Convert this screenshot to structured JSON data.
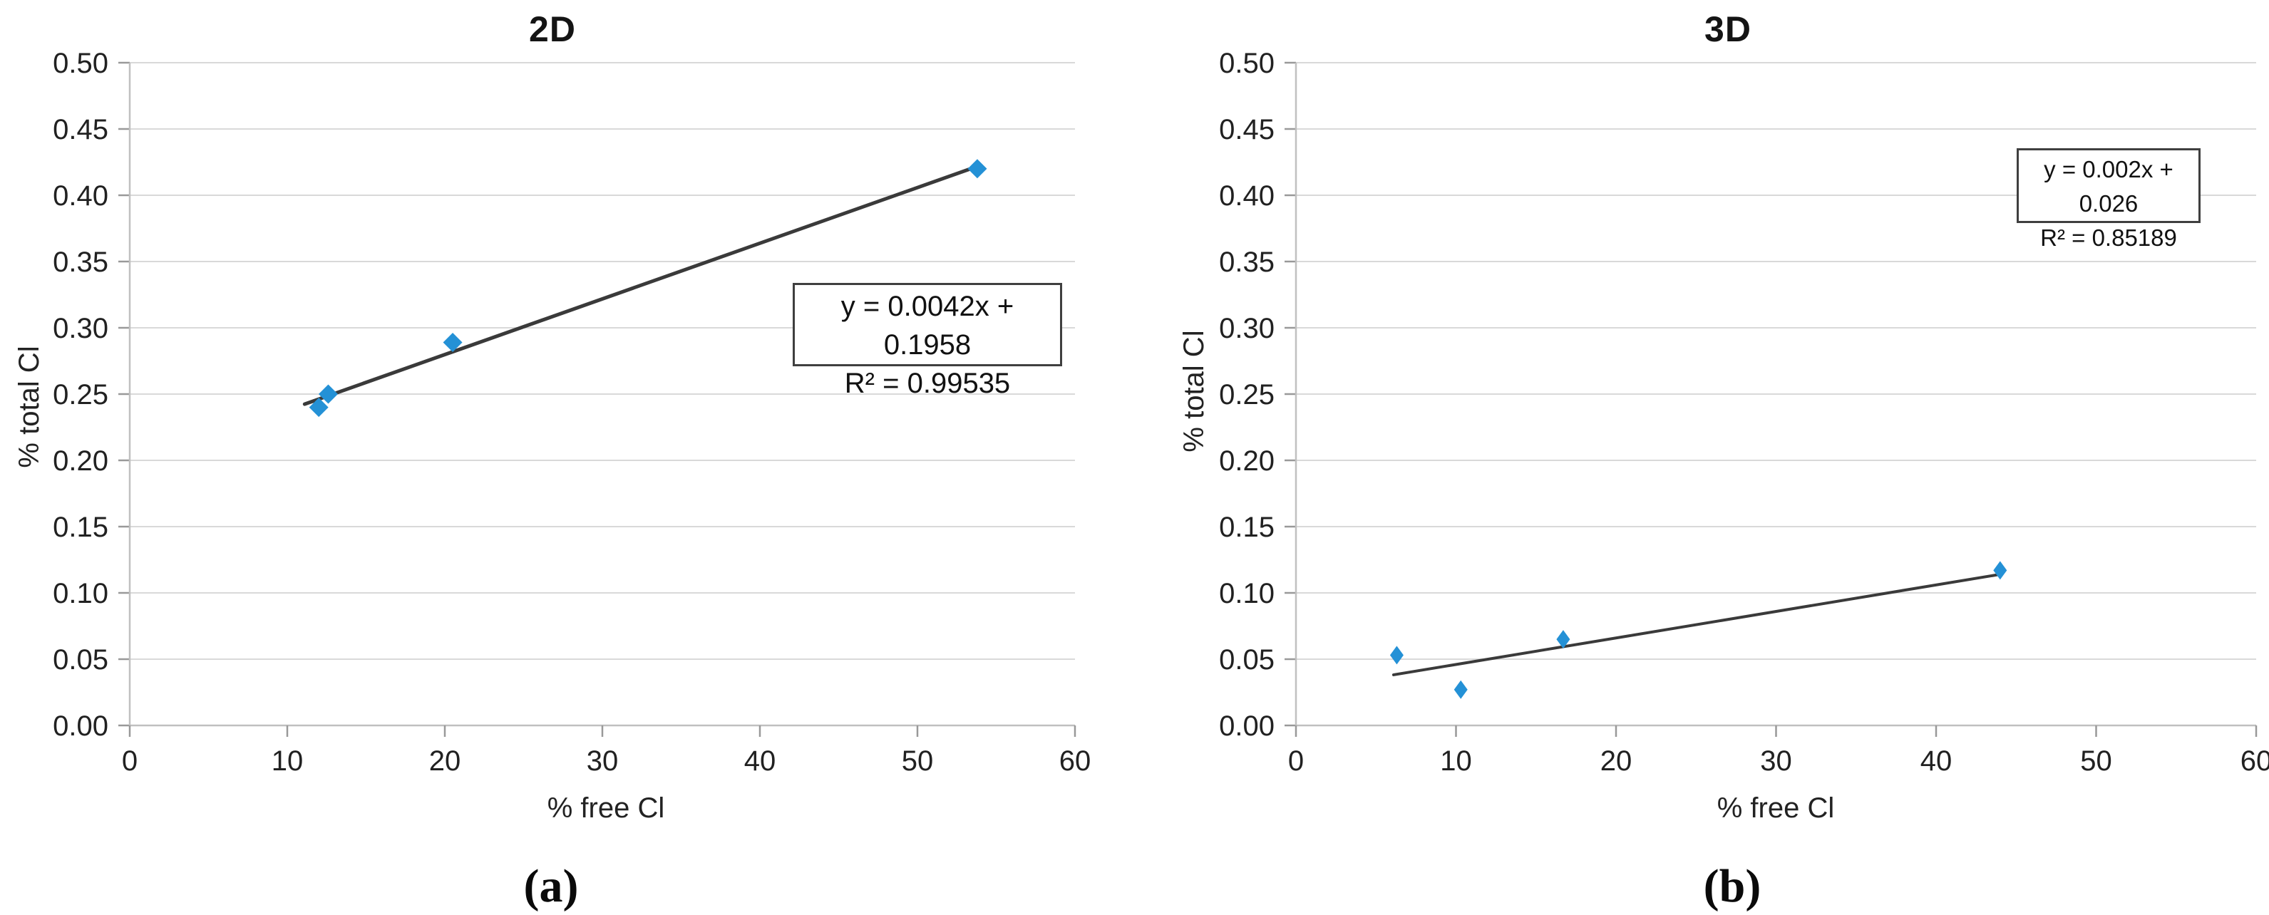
{
  "figure": {
    "captions": {
      "a": "(a)",
      "b": "(b)"
    }
  },
  "colors": {
    "marker": "#2491d6",
    "trendline": "#3a3a3a",
    "gridline": "#d9d9d9",
    "axis": "#c0c0c0",
    "tick": "#999999",
    "tick_label": "#212121",
    "background": "#ffffff"
  },
  "chart_data": [
    {
      "type": "scatter",
      "title": "2D",
      "xlabel": "% free Cl",
      "ylabel": "% total Cl",
      "xlim": [
        0,
        60
      ],
      "xstep": 10,
      "ylim": [
        0,
        0.5
      ],
      "ystep": 0.05,
      "grid": true,
      "legend": "none",
      "points": [
        {
          "x": 12.0,
          "y": 0.24
        },
        {
          "x": 12.6,
          "y": 0.25
        },
        {
          "x": 20.5,
          "y": 0.289
        },
        {
          "x": 53.8,
          "y": 0.42
        }
      ],
      "trendline": {
        "slope": 0.0042,
        "intercept": 0.1958,
        "x_start": 11.1,
        "x_end": 53.8,
        "equation": "y = 0.0042x + 0.1958",
        "r_squared": "R² = 0.99535"
      }
    },
    {
      "type": "scatter",
      "title": "3D",
      "xlabel": "% free Cl",
      "ylabel": "% total Cl",
      "xlim": [
        0,
        60
      ],
      "xstep": 10,
      "ylim": [
        0,
        0.5
      ],
      "ystep": 0.05,
      "grid": true,
      "legend": "none",
      "points": [
        {
          "x": 6.3,
          "y": 0.053
        },
        {
          "x": 10.3,
          "y": 0.027
        },
        {
          "x": 16.7,
          "y": 0.065
        },
        {
          "x": 44.0,
          "y": 0.117
        }
      ],
      "trendline": {
        "slope": 0.002,
        "intercept": 0.026,
        "x_start": 6.1,
        "x_end": 44.0,
        "equation": "y = 0.002x + 0.026",
        "r_squared": "R² = 0.85189"
      }
    }
  ]
}
